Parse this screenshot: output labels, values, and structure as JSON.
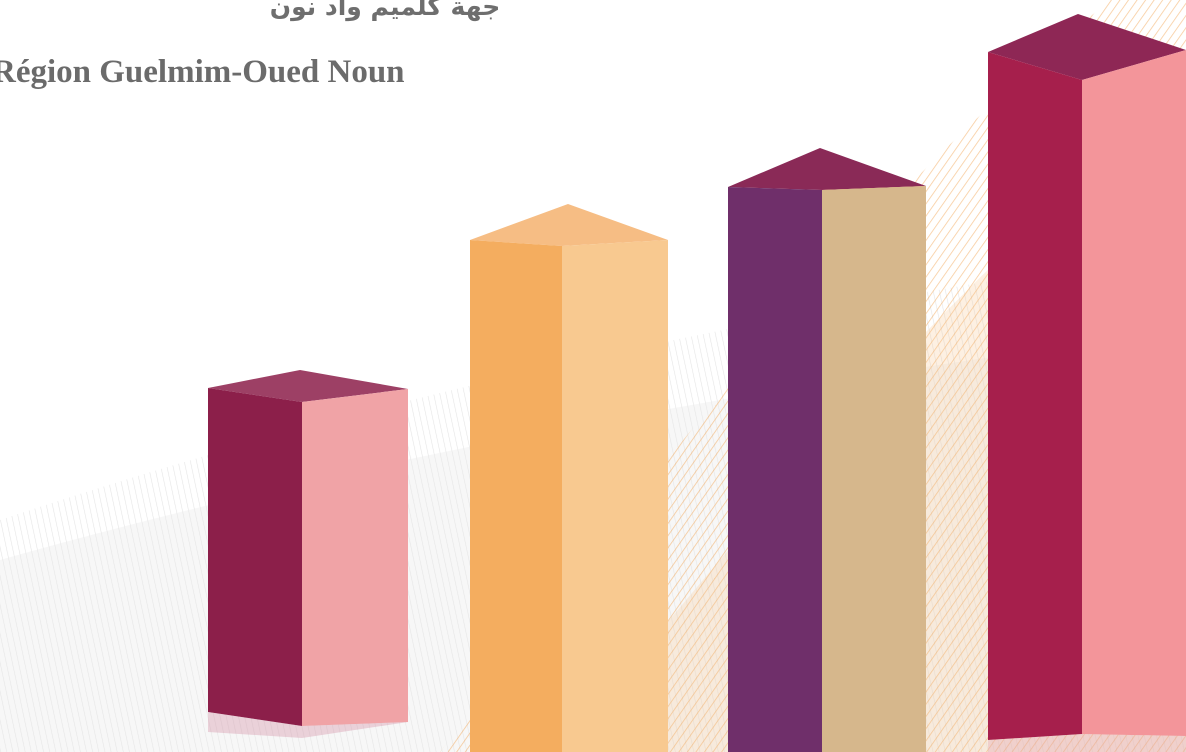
{
  "header": {
    "title_ar": "جهة كلميم واد نون",
    "title_fr": "Région Guelmim-Oued Noun"
  },
  "illustration": {
    "kind": "decorative-3d-bars",
    "bar_count": 4,
    "relative_heights": [
      0.47,
      0.73,
      0.79,
      1.0
    ],
    "colors": {
      "maroon": "#8c1f4a",
      "pink": "#f0a3a6",
      "orange": "#f4ad5f",
      "light_orange": "#f8c990",
      "purple": "#6f2f6a",
      "tan": "#d6b78c",
      "crimson": "#a61f4c",
      "salmon": "#f3959a",
      "swoosh_gray": "#d2d2d2",
      "swoosh_orange": "#f2a24e"
    }
  }
}
